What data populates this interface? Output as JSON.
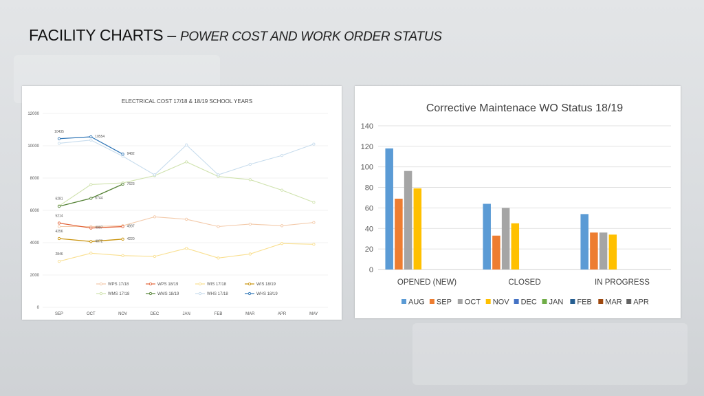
{
  "slide": {
    "title_main": "FACILITY CHARTS – ",
    "title_sub": "POWER COST AND WORK ORDER STATUS"
  },
  "chart_data": [
    {
      "type": "line",
      "title": "ELECTRICAL COST  17/18  & 18/19 SCHOOL YEARS",
      "categories": [
        "SEP",
        "OCT",
        "NOV",
        "DEC",
        "JAN",
        "FEB",
        "MAR",
        "APR",
        "MAY"
      ],
      "ylim": [
        0,
        12000
      ],
      "yticks": [
        0,
        2000,
        4000,
        6000,
        8000,
        10000,
        12000
      ],
      "grid": true,
      "legend_position": "bottom",
      "series": [
        {
          "name": "WPS 17/18",
          "color": "#f3c9a8",
          "values": [
            5000,
            5000,
            5050,
            5600,
            5450,
            5000,
            5150,
            5050,
            5250
          ]
        },
        {
          "name": "WPS 18/19",
          "color": "#e2643a",
          "values": [
            5214,
            4907,
            4997,
            null,
            null,
            null,
            null,
            null,
            null
          ],
          "labels": [
            "5214",
            "4907",
            "4997"
          ]
        },
        {
          "name": "WIS 17/18",
          "color": "#f9df8f",
          "values": [
            2846,
            3350,
            3200,
            3150,
            3650,
            3050,
            3300,
            3950,
            3900
          ],
          "labels": [
            "2846"
          ]
        },
        {
          "name": "WIS 18/19",
          "color": "#c9920a",
          "values": [
            4256,
            4072,
            4220,
            null,
            null,
            null,
            null,
            null,
            null
          ],
          "labels": [
            "4256",
            "4072",
            "4220"
          ]
        },
        {
          "name": "WMS 17/18",
          "color": "#cfe2ad",
          "values": [
            6281,
            7600,
            7700,
            8150,
            9000,
            8100,
            7900,
            7250,
            6500
          ],
          "labels": [
            "6281"
          ]
        },
        {
          "name": "WMS 18/19",
          "color": "#548235",
          "values": [
            6250,
            6744,
            7623,
            null,
            null,
            null,
            null,
            null,
            null
          ],
          "labels": [
            "",
            "6744",
            "7623"
          ]
        },
        {
          "name": "WHS 17/18",
          "color": "#c7dced",
          "values": [
            10150,
            10350,
            9350,
            8200,
            10050,
            8200,
            8850,
            9400,
            10100
          ]
        },
        {
          "name": "WHS 18/19",
          "color": "#2e75b6",
          "values": [
            10435,
            10554,
            9482,
            null,
            null,
            null,
            null,
            null,
            null
          ],
          "labels": [
            "10435",
            "10554",
            "9482"
          ]
        }
      ]
    },
    {
      "type": "bar",
      "title": "Corrective Maintenace WO Status 18/19",
      "categories": [
        "OPENED (NEW)",
        "CLOSED",
        "IN PROGRESS"
      ],
      "ylim": [
        0,
        140
      ],
      "yticks": [
        0,
        20,
        40,
        60,
        80,
        100,
        120,
        140
      ],
      "grid": true,
      "legend_position": "bottom",
      "series": [
        {
          "name": "AUG",
          "color": "#5b9bd5",
          "values": [
            118,
            64,
            54
          ]
        },
        {
          "name": "SEP",
          "color": "#ed7d31",
          "values": [
            69,
            33,
            36
          ]
        },
        {
          "name": "OCT",
          "color": "#a5a5a5",
          "values": [
            96,
            60,
            36
          ]
        },
        {
          "name": "NOV",
          "color": "#ffc000",
          "values": [
            79,
            45,
            34
          ]
        },
        {
          "name": "DEC",
          "color": "#4472c4",
          "values": [
            null,
            null,
            null
          ]
        },
        {
          "name": "JAN",
          "color": "#70ad47",
          "values": [
            null,
            null,
            null
          ]
        },
        {
          "name": "FEB",
          "color": "#255e91",
          "values": [
            null,
            null,
            null
          ]
        },
        {
          "name": "MAR",
          "color": "#9e480e",
          "values": [
            null,
            null,
            null
          ]
        },
        {
          "name": "APR",
          "color": "#636363",
          "values": [
            null,
            null,
            null
          ]
        }
      ]
    }
  ]
}
